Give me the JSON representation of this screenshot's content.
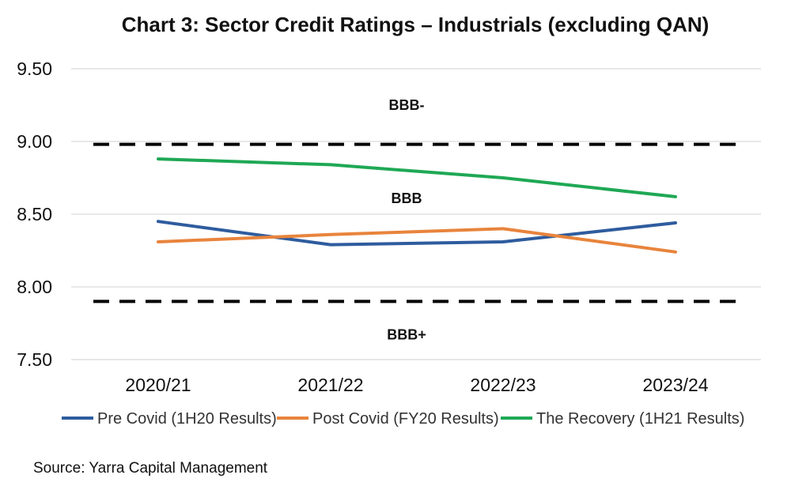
{
  "chart_data": {
    "type": "line",
    "title": "Chart 3: Sector Credit Ratings – Industrials (excluding QAN)",
    "categories": [
      "2020/21",
      "2021/22",
      "2022/23",
      "2023/24"
    ],
    "ylim": [
      7.5,
      9.5
    ],
    "yticks": [
      "9.50",
      "9.00",
      "8.50",
      "8.00",
      "7.50"
    ],
    "grid": true,
    "legend_position": "bottom",
    "series": [
      {
        "name": "Pre Covid (1H20 Results)",
        "color": "#2E5C9E",
        "values": [
          8.45,
          8.29,
          8.31,
          8.44
        ]
      },
      {
        "name": "Post Covid (FY20 Results)",
        "color": "#E8843C",
        "values": [
          8.31,
          8.36,
          8.4,
          8.24
        ]
      },
      {
        "name": "The Recovery (1H21 Results)",
        "color": "#1FA855",
        "values": [
          8.88,
          8.84,
          8.75,
          8.62
        ]
      }
    ],
    "reference_lines": [
      {
        "value": 8.98,
        "style": "dashed",
        "color": "#000000"
      },
      {
        "value": 7.9,
        "style": "dashed",
        "color": "#000000"
      }
    ],
    "annotations": [
      {
        "text": "BBB-",
        "y": 9.25
      },
      {
        "text": "BBB",
        "y": 8.61
      },
      {
        "text": "BBB+",
        "y": 7.67
      }
    ]
  },
  "source": "Source: Yarra Capital Management"
}
